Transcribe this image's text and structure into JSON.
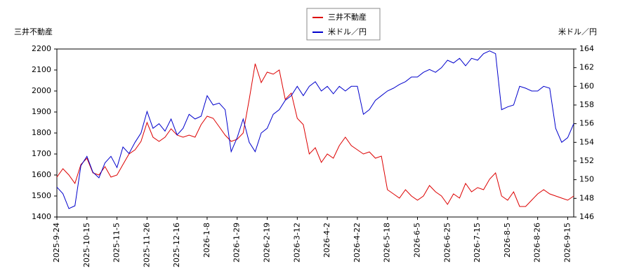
{
  "chart_data": {
    "type": "line",
    "y_label": "三井不動産",
    "y2_label": "米ドル／円",
    "categories": [
      "2025-9-24",
      null,
      null,
      null,
      null,
      "2025-10-15",
      null,
      null,
      null,
      null,
      "2025-11-5",
      null,
      null,
      null,
      null,
      "2025-11-26",
      null,
      null,
      null,
      null,
      "2025-12-16",
      null,
      null,
      null,
      null,
      "2026-1-8",
      null,
      null,
      null,
      null,
      "2026-1-29",
      null,
      null,
      null,
      null,
      "2026-2-19",
      null,
      null,
      null,
      null,
      "2026-3-12",
      null,
      null,
      null,
      null,
      "2026-4-2",
      null,
      null,
      null,
      null,
      "2026-4-22",
      null,
      null,
      null,
      null,
      "2026-5-18",
      null,
      null,
      null,
      null,
      "2026-6-5",
      null,
      null,
      null,
      null,
      "2026-6-25",
      null,
      null,
      null,
      null,
      "2026-7-15",
      null,
      null,
      null,
      null,
      "2026-8-5",
      null,
      null,
      null,
      null,
      "2026-8-26",
      null,
      null,
      null,
      null,
      "2026-9-15",
      null
    ],
    "series": [
      {
        "name": "三井不動産",
        "color": "#dd0000",
        "axis": "y",
        "values": [
          1590,
          1630,
          1600,
          1560,
          1650,
          1680,
          1610,
          1600,
          1640,
          1590,
          1600,
          1650,
          1700,
          1720,
          1760,
          1850,
          1780,
          1760,
          1780,
          1820,
          1790,
          1780,
          1790,
          1780,
          1840,
          1880,
          1870,
          1830,
          1790,
          1760,
          1770,
          1800,
          1960,
          2130,
          2040,
          2090,
          2080,
          2100,
          1960,
          1990,
          1870,
          1840,
          1700,
          1730,
          1660,
          1700,
          1680,
          1740,
          1780,
          1740,
          1720,
          1700,
          1710,
          1680,
          1690,
          1530,
          1510,
          1490,
          1530,
          1500,
          1480,
          1500,
          1550,
          1520,
          1500,
          1460,
          1510,
          1490,
          1560,
          1520,
          1540,
          1530,
          1580,
          1610,
          1500,
          1480,
          1520,
          1450,
          1450,
          1480,
          1510,
          1530,
          1510,
          1500,
          1490,
          1480,
          1500
        ]
      },
      {
        "name": "米ドル／円",
        "color": "#0000cc",
        "axis": "y2",
        "values": [
          149.2,
          148.5,
          146.9,
          147.2,
          151.5,
          152.5,
          150.8,
          150.2,
          151.8,
          152.5,
          151.3,
          153.5,
          152.8,
          154,
          155,
          157.3,
          155.5,
          156,
          155.2,
          156.5,
          154.8,
          155.5,
          157,
          156.5,
          156.8,
          159,
          158,
          158.2,
          157.5,
          153,
          154.5,
          156.5,
          154,
          153,
          155,
          155.5,
          157,
          157.5,
          158.5,
          159,
          160,
          159,
          160,
          160.5,
          159.5,
          160,
          159.2,
          160,
          159.5,
          160,
          160,
          157,
          157.5,
          158.5,
          159,
          159.5,
          159.8,
          160.2,
          160.5,
          161,
          161,
          161.5,
          161.8,
          161.5,
          162,
          162.8,
          162.5,
          163,
          162.2,
          163,
          162.8,
          163.5,
          163.8,
          163.5,
          157.5,
          157.8,
          158,
          160,
          159.8,
          159.5,
          159.5,
          160,
          159.8,
          155.5,
          154,
          154.5,
          156
        ]
      }
    ],
    "ylim": [
      1400,
      2200
    ],
    "yticks": [
      1400,
      1500,
      1600,
      1700,
      1800,
      1900,
      2000,
      2100,
      2200
    ],
    "y2lim": [
      146,
      164
    ],
    "y2ticks": [
      146,
      148,
      150,
      152,
      154,
      156,
      158,
      160,
      162,
      164
    ]
  }
}
